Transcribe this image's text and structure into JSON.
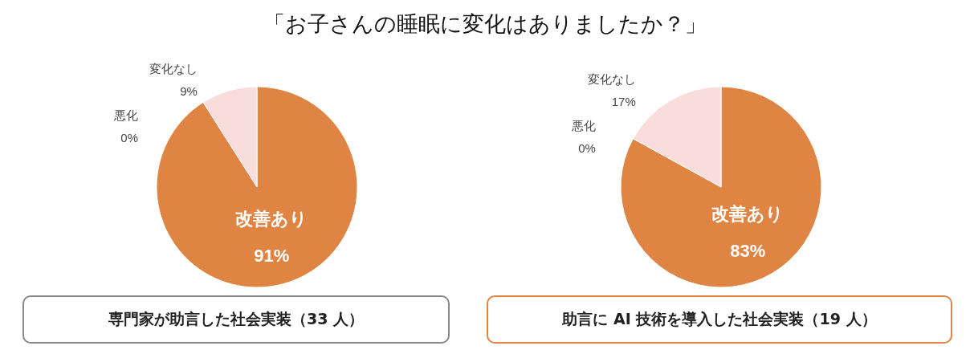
{
  "chart_data": [
    {
      "type": "pie",
      "title": "「お子さんの睡眠に変化はありましたか？」",
      "categories": [
        "改善あり",
        "悪化",
        "変化なし"
      ],
      "values": [
        91,
        0,
        9
      ],
      "value_labels": [
        "91%",
        "0%",
        "9%"
      ],
      "colors": [
        "#e08444",
        "#e08444",
        "#f9dcdc"
      ],
      "legend": false,
      "annotations": [
        "専門家が助言した社会実装（33 人）"
      ]
    },
    {
      "type": "pie",
      "categories": [
        "改善あり",
        "悪化",
        "変化なし"
      ],
      "values": [
        83,
        0,
        17
      ],
      "value_labels": [
        "83%",
        "0%",
        "17%"
      ],
      "colors": [
        "#e08444",
        "#e08444",
        "#f9dcdc"
      ],
      "legend": false,
      "annotations": [
        "助言に AI 技術を導入した社会実装（19 人）"
      ]
    }
  ]
}
